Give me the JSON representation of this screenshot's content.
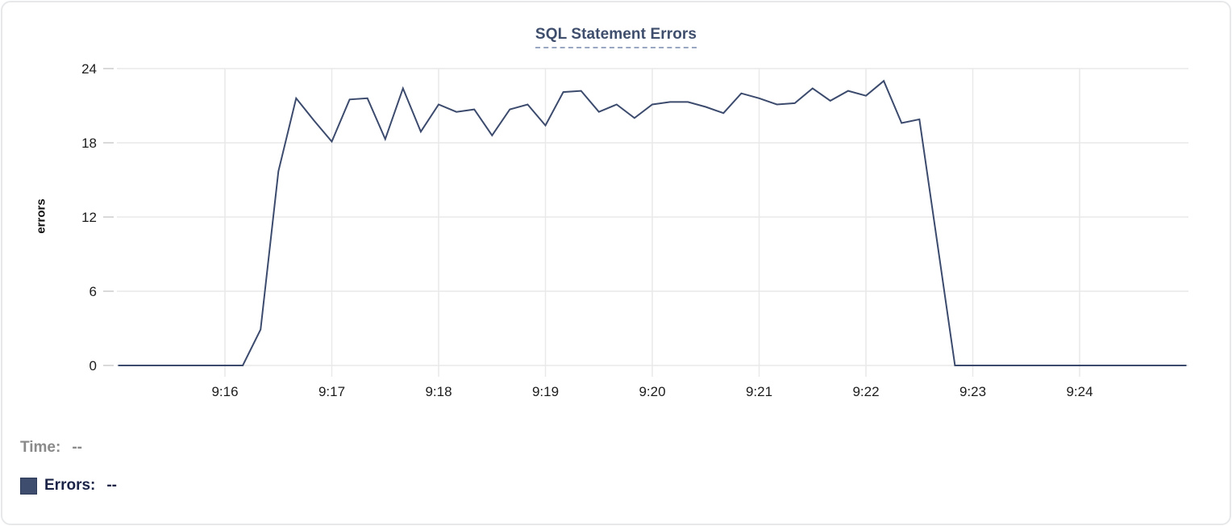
{
  "title": "SQL Statement Errors",
  "readout": {
    "time_label": "Time:",
    "time_value": "--",
    "errors_label": "Errors:",
    "errors_value": "--"
  },
  "colors": {
    "series_line": "#3c4b6d",
    "legend_swatch": "#3e4d6e",
    "legend_swatch_border": "#2e3b58",
    "title_text": "#3e4e6c",
    "title_underline": "#9aa7c2",
    "gridline": "#e9e9e9",
    "axis_tick": "#d9d9d9",
    "axis_label_text": "#1c1c1c",
    "muted_text": "#8a8a8a",
    "errors_text": "#1b2447"
  },
  "chart_data": {
    "type": "line",
    "title": "SQL Statement Errors",
    "xlabel": "",
    "ylabel": "errors",
    "y_ticks": [
      0,
      6,
      12,
      18,
      24
    ],
    "ylim": [
      0,
      24
    ],
    "x_tick_labels": [
      "9:16",
      "9:17",
      "9:18",
      "9:19",
      "9:20",
      "9:21",
      "9:22",
      "9:23",
      "9:24"
    ],
    "x_range": [
      "9:15:00",
      "9:25:00"
    ],
    "interval_seconds": 10,
    "grid": true,
    "legend_position": "bottom-left",
    "series": [
      {
        "name": "Errors",
        "times": [
          "9:15:00",
          "9:15:10",
          "9:15:20",
          "9:15:30",
          "9:15:40",
          "9:15:50",
          "9:16:00",
          "9:16:10",
          "9:16:20",
          "9:16:30",
          "9:16:40",
          "9:16:50",
          "9:17:00",
          "9:17:10",
          "9:17:20",
          "9:17:30",
          "9:17:40",
          "9:17:50",
          "9:18:00",
          "9:18:10",
          "9:18:20",
          "9:18:30",
          "9:18:40",
          "9:18:50",
          "9:19:00",
          "9:19:10",
          "9:19:20",
          "9:19:30",
          "9:19:40",
          "9:19:50",
          "9:20:00",
          "9:20:10",
          "9:20:20",
          "9:20:30",
          "9:20:40",
          "9:20:50",
          "9:21:00",
          "9:21:10",
          "9:21:20",
          "9:21:30",
          "9:21:40",
          "9:21:50",
          "9:22:00",
          "9:22:10",
          "9:22:20",
          "9:22:30",
          "9:22:40",
          "9:22:50",
          "9:23:00",
          "9:23:10",
          "9:23:20",
          "9:23:30",
          "9:23:40",
          "9:23:50",
          "9:24:00",
          "9:24:10",
          "9:24:20",
          "9:24:30",
          "9:24:40",
          "9:24:50",
          "9:25:00"
        ],
        "values": [
          0,
          0,
          0,
          0,
          0,
          0,
          0,
          0,
          2.9,
          15.7,
          21.6,
          19.8,
          18.1,
          21.5,
          21.6,
          18.3,
          22.4,
          18.9,
          21.1,
          20.5,
          20.7,
          18.6,
          20.7,
          21.1,
          19.4,
          22.1,
          22.2,
          20.5,
          21.1,
          20,
          21.1,
          21.3,
          21.3,
          20.9,
          20.4,
          22,
          21.6,
          21.1,
          21.2,
          22.4,
          21.4,
          22.2,
          21.8,
          23,
          19.6,
          19.9,
          10,
          0,
          0,
          0,
          0,
          0,
          0,
          0,
          0,
          0,
          0,
          0,
          0,
          0,
          0
        ]
      }
    ]
  }
}
